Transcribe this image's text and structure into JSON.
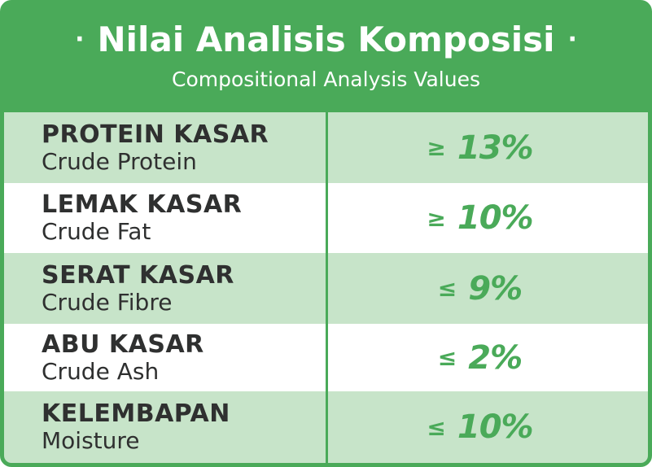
{
  "header": {
    "bullet": "·",
    "title": "Nilai Analisis Komposisi",
    "subtitle": "Compositional Analysis Values"
  },
  "rows": [
    {
      "label": "PROTEIN KASAR",
      "sublabel": "Crude Protein",
      "operator": "≥",
      "value": "13%"
    },
    {
      "label": "LEMAK KASAR",
      "sublabel": "Crude Fat",
      "operator": "≥",
      "value": "10%"
    },
    {
      "label": "SERAT KASAR",
      "sublabel": "Crude Fibre",
      "operator": "≤",
      "value": "9%"
    },
    {
      "label": "ABU KASAR",
      "sublabel": "Crude Ash",
      "operator": "≤",
      "value": "2%"
    },
    {
      "label": "KELEMBAPAN",
      "sublabel": "Moisture",
      "operator": "≤",
      "value": "10%"
    }
  ],
  "colors": {
    "brand_green": "#4aaa59",
    "row_green": "#c7e4c9",
    "row_white": "#ffffff",
    "label_text": "#2f3030"
  }
}
